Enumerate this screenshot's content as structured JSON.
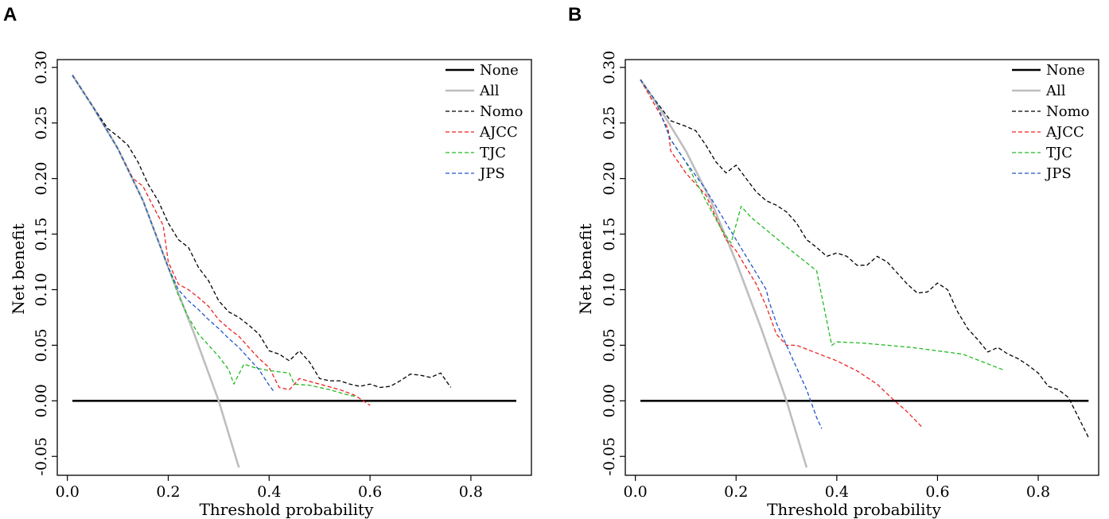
{
  "chart_data": [
    {
      "panel_label": "A",
      "type": "line",
      "xlabel": "Threshold probability",
      "ylabel": "Net benefit",
      "xlim": [
        -0.02,
        0.92
      ],
      "ylim": [
        -0.067,
        0.307
      ],
      "x_ticks": [
        {
          "v": 0.0,
          "label": "0.0"
        },
        {
          "v": 0.2,
          "label": "0.2"
        },
        {
          "v": 0.4,
          "label": "0.4"
        },
        {
          "v": 0.6,
          "label": "0.6"
        },
        {
          "v": 0.8,
          "label": "0.8"
        }
      ],
      "y_ticks": [
        {
          "v": -0.05,
          "label": "-0.05"
        },
        {
          "v": 0.0,
          "label": "0.00"
        },
        {
          "v": 0.05,
          "label": "0.05"
        },
        {
          "v": 0.1,
          "label": "0.10"
        },
        {
          "v": 0.15,
          "label": "0.15"
        },
        {
          "v": 0.2,
          "label": "0.20"
        },
        {
          "v": 0.25,
          "label": "0.25"
        },
        {
          "v": 0.3,
          "label": "0.30"
        }
      ],
      "legend_position": "top-right",
      "series": [
        {
          "name": "None",
          "color": "#000000",
          "style": "solid-thick",
          "x": [
            0.01,
            0.89
          ],
          "y": [
            0.0,
            0.0
          ]
        },
        {
          "name": "All",
          "color": "#bebebe",
          "style": "solid-thick",
          "x": [
            0.01,
            0.05,
            0.1,
            0.15,
            0.2,
            0.25,
            0.3,
            0.34
          ],
          "y": [
            0.293,
            0.265,
            0.227,
            0.18,
            0.12,
            0.062,
            0.0,
            -0.06
          ]
        },
        {
          "name": "Nomo",
          "color": "#000000",
          "style": "dashed",
          "x": [
            0.01,
            0.05,
            0.08,
            0.1,
            0.12,
            0.14,
            0.16,
            0.18,
            0.2,
            0.22,
            0.24,
            0.26,
            0.28,
            0.3,
            0.32,
            0.34,
            0.36,
            0.38,
            0.4,
            0.42,
            0.44,
            0.46,
            0.48,
            0.5,
            0.52,
            0.54,
            0.56,
            0.58,
            0.6,
            0.62,
            0.64,
            0.66,
            0.68,
            0.7,
            0.72,
            0.74,
            0.76
          ],
          "y": [
            0.293,
            0.265,
            0.245,
            0.238,
            0.23,
            0.215,
            0.195,
            0.18,
            0.16,
            0.145,
            0.138,
            0.12,
            0.108,
            0.09,
            0.08,
            0.075,
            0.068,
            0.06,
            0.045,
            0.042,
            0.036,
            0.045,
            0.035,
            0.02,
            0.018,
            0.018,
            0.015,
            0.013,
            0.015,
            0.012,
            0.013,
            0.018,
            0.024,
            0.023,
            0.021,
            0.025,
            0.012
          ]
        },
        {
          "name": "AJCC",
          "color": "#ee2222",
          "style": "dashed",
          "x": [
            0.01,
            0.05,
            0.1,
            0.13,
            0.15,
            0.17,
            0.19,
            0.2,
            0.22,
            0.24,
            0.26,
            0.28,
            0.3,
            0.32,
            0.34,
            0.36,
            0.38,
            0.4,
            0.42,
            0.44,
            0.46,
            0.5,
            0.54,
            0.57,
            0.6
          ],
          "y": [
            0.293,
            0.265,
            0.227,
            0.2,
            0.193,
            0.175,
            0.158,
            0.125,
            0.105,
            0.1,
            0.093,
            0.085,
            0.073,
            0.065,
            0.058,
            0.048,
            0.038,
            0.03,
            0.012,
            0.01,
            0.02,
            0.015,
            0.01,
            0.005,
            -0.004
          ]
        },
        {
          "name": "TJC",
          "color": "#22bb22",
          "style": "dashed",
          "x": [
            0.01,
            0.05,
            0.1,
            0.15,
            0.2,
            0.22,
            0.24,
            0.26,
            0.28,
            0.3,
            0.32,
            0.33,
            0.35,
            0.37,
            0.39,
            0.42,
            0.44,
            0.45,
            0.48,
            0.52,
            0.55,
            0.57
          ],
          "y": [
            0.293,
            0.265,
            0.227,
            0.18,
            0.12,
            0.095,
            0.075,
            0.06,
            0.05,
            0.04,
            0.028,
            0.015,
            0.033,
            0.03,
            0.028,
            0.026,
            0.025,
            0.015,
            0.014,
            0.01,
            0.006,
            0.004
          ]
        },
        {
          "name": "JPS",
          "color": "#2255cc",
          "style": "dashed",
          "x": [
            0.01,
            0.05,
            0.1,
            0.15,
            0.2,
            0.22,
            0.24,
            0.26,
            0.28,
            0.3,
            0.32,
            0.34,
            0.36,
            0.38,
            0.4,
            0.41
          ],
          "y": [
            0.293,
            0.265,
            0.227,
            0.18,
            0.12,
            0.1,
            0.09,
            0.082,
            0.073,
            0.065,
            0.056,
            0.048,
            0.038,
            0.028,
            0.014,
            0.008
          ]
        }
      ]
    },
    {
      "panel_label": "B",
      "type": "line",
      "xlabel": "Threshold probability",
      "ylabel": "Net benefit",
      "xlim": [
        -0.02,
        0.92
      ],
      "ylim": [
        -0.067,
        0.307
      ],
      "x_ticks": [
        {
          "v": 0.0,
          "label": "0.0"
        },
        {
          "v": 0.2,
          "label": "0.2"
        },
        {
          "v": 0.4,
          "label": "0.4"
        },
        {
          "v": 0.6,
          "label": "0.6"
        },
        {
          "v": 0.8,
          "label": "0.8"
        }
      ],
      "y_ticks": [
        {
          "v": -0.05,
          "label": "-0.05"
        },
        {
          "v": 0.0,
          "label": "0.00"
        },
        {
          "v": 0.05,
          "label": "0.05"
        },
        {
          "v": 0.1,
          "label": "0.10"
        },
        {
          "v": 0.15,
          "label": "0.15"
        },
        {
          "v": 0.2,
          "label": "0.20"
        },
        {
          "v": 0.25,
          "label": "0.25"
        },
        {
          "v": 0.3,
          "label": "0.30"
        }
      ],
      "legend_position": "top-right",
      "series": [
        {
          "name": "None",
          "color": "#000000",
          "style": "solid-thick",
          "x": [
            0.01,
            0.9
          ],
          "y": [
            0.0,
            0.0
          ]
        },
        {
          "name": "All",
          "color": "#bebebe",
          "style": "solid-thick",
          "x": [
            0.01,
            0.05,
            0.1,
            0.15,
            0.2,
            0.25,
            0.3,
            0.34
          ],
          "y": [
            0.289,
            0.262,
            0.225,
            0.18,
            0.125,
            0.065,
            0.0,
            -0.06
          ]
        },
        {
          "name": "Nomo",
          "color": "#000000",
          "style": "dashed",
          "x": [
            0.01,
            0.04,
            0.07,
            0.1,
            0.12,
            0.14,
            0.16,
            0.18,
            0.2,
            0.22,
            0.24,
            0.26,
            0.28,
            0.3,
            0.32,
            0.34,
            0.36,
            0.38,
            0.4,
            0.42,
            0.44,
            0.46,
            0.48,
            0.5,
            0.52,
            0.54,
            0.56,
            0.58,
            0.6,
            0.62,
            0.64,
            0.66,
            0.68,
            0.7,
            0.72,
            0.74,
            0.76,
            0.78,
            0.8,
            0.82,
            0.84,
            0.86,
            0.88,
            0.9
          ],
          "y": [
            0.289,
            0.27,
            0.252,
            0.247,
            0.243,
            0.23,
            0.215,
            0.205,
            0.212,
            0.2,
            0.188,
            0.18,
            0.176,
            0.17,
            0.16,
            0.145,
            0.138,
            0.13,
            0.133,
            0.13,
            0.122,
            0.122,
            0.13,
            0.125,
            0.115,
            0.105,
            0.097,
            0.098,
            0.106,
            0.1,
            0.08,
            0.065,
            0.055,
            0.044,
            0.048,
            0.042,
            0.038,
            0.032,
            0.025,
            0.013,
            0.01,
            0.003,
            -0.015,
            -0.033
          ]
        },
        {
          "name": "AJCC",
          "color": "#ee2222",
          "style": "dashed",
          "x": [
            0.01,
            0.04,
            0.065,
            0.07,
            0.1,
            0.12,
            0.14,
            0.16,
            0.18,
            0.2,
            0.22,
            0.24,
            0.26,
            0.28,
            0.3,
            0.32,
            0.36,
            0.4,
            0.44,
            0.48,
            0.51,
            0.54,
            0.57
          ],
          "y": [
            0.289,
            0.265,
            0.245,
            0.225,
            0.205,
            0.195,
            0.185,
            0.165,
            0.145,
            0.135,
            0.12,
            0.105,
            0.085,
            0.06,
            0.05,
            0.05,
            0.043,
            0.036,
            0.027,
            0.015,
            0.002,
            -0.01,
            -0.024
          ]
        },
        {
          "name": "TJC",
          "color": "#22bb22",
          "style": "dashed",
          "x": [
            0.01,
            0.04,
            0.07,
            0.1,
            0.14,
            0.17,
            0.19,
            0.21,
            0.23,
            0.27,
            0.31,
            0.36,
            0.39,
            0.4,
            0.45,
            0.55,
            0.65,
            0.73
          ],
          "y": [
            0.289,
            0.27,
            0.235,
            0.215,
            0.18,
            0.155,
            0.142,
            0.175,
            0.165,
            0.15,
            0.135,
            0.117,
            0.05,
            0.053,
            0.052,
            0.048,
            0.042,
            0.028
          ]
        },
        {
          "name": "JPS",
          "color": "#2255cc",
          "style": "dashed",
          "x": [
            0.01,
            0.04,
            0.07,
            0.1,
            0.14,
            0.18,
            0.22,
            0.26,
            0.265,
            0.28,
            0.3,
            0.32,
            0.34,
            0.36,
            0.37
          ],
          "y": [
            0.289,
            0.27,
            0.235,
            0.215,
            0.19,
            0.16,
            0.13,
            0.1,
            0.09,
            0.07,
            0.05,
            0.03,
            0.01,
            -0.015,
            -0.025
          ]
        }
      ]
    }
  ]
}
